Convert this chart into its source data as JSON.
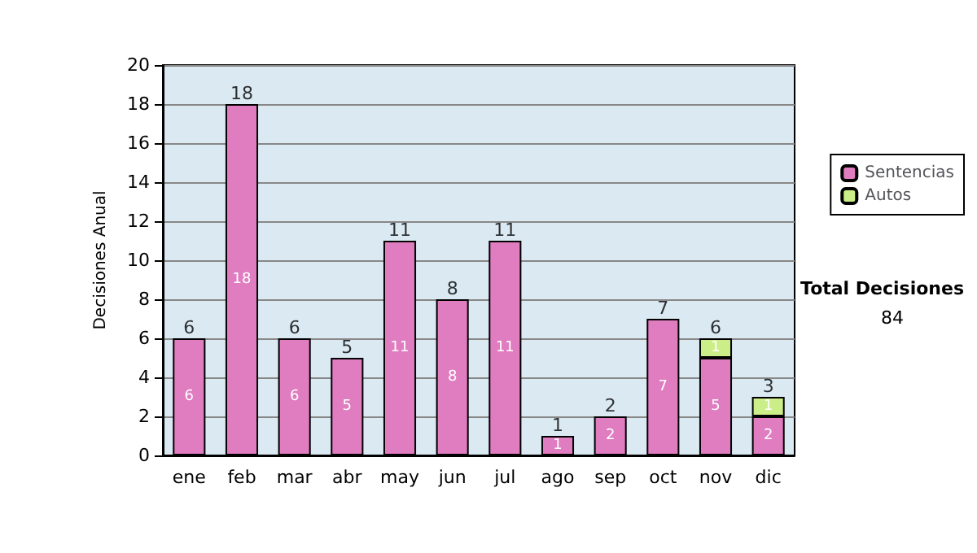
{
  "chart_data": {
    "type": "bar",
    "stacked": true,
    "ylabel": "Decisiones Anual",
    "categories": [
      "ene",
      "feb",
      "mar",
      "abr",
      "may",
      "jun",
      "jul",
      "ago",
      "sep",
      "oct",
      "nov",
      "dic"
    ],
    "series": [
      {
        "name": "Sentencias",
        "color": "#e07cc0",
        "values": [
          6,
          18,
          6,
          5,
          11,
          8,
          11,
          1,
          2,
          7,
          5,
          2
        ]
      },
      {
        "name": "Autos",
        "color": "#ccee88",
        "values": [
          null,
          null,
          null,
          null,
          null,
          null,
          null,
          null,
          null,
          null,
          1,
          1
        ]
      }
    ],
    "totals": [
      "6",
      "18",
      "6",
      "5",
      "11",
      "8",
      "11",
      "1",
      "2",
      "7",
      "6",
      "3"
    ],
    "data_labels": true,
    "ylim": [
      0,
      20
    ],
    "yticks": [
      0,
      2,
      4,
      6,
      8,
      10,
      12,
      14,
      16,
      18,
      20
    ],
    "grid": "y",
    "legend": "right",
    "annotations": [
      "Total Decisiones",
      "84"
    ]
  }
}
